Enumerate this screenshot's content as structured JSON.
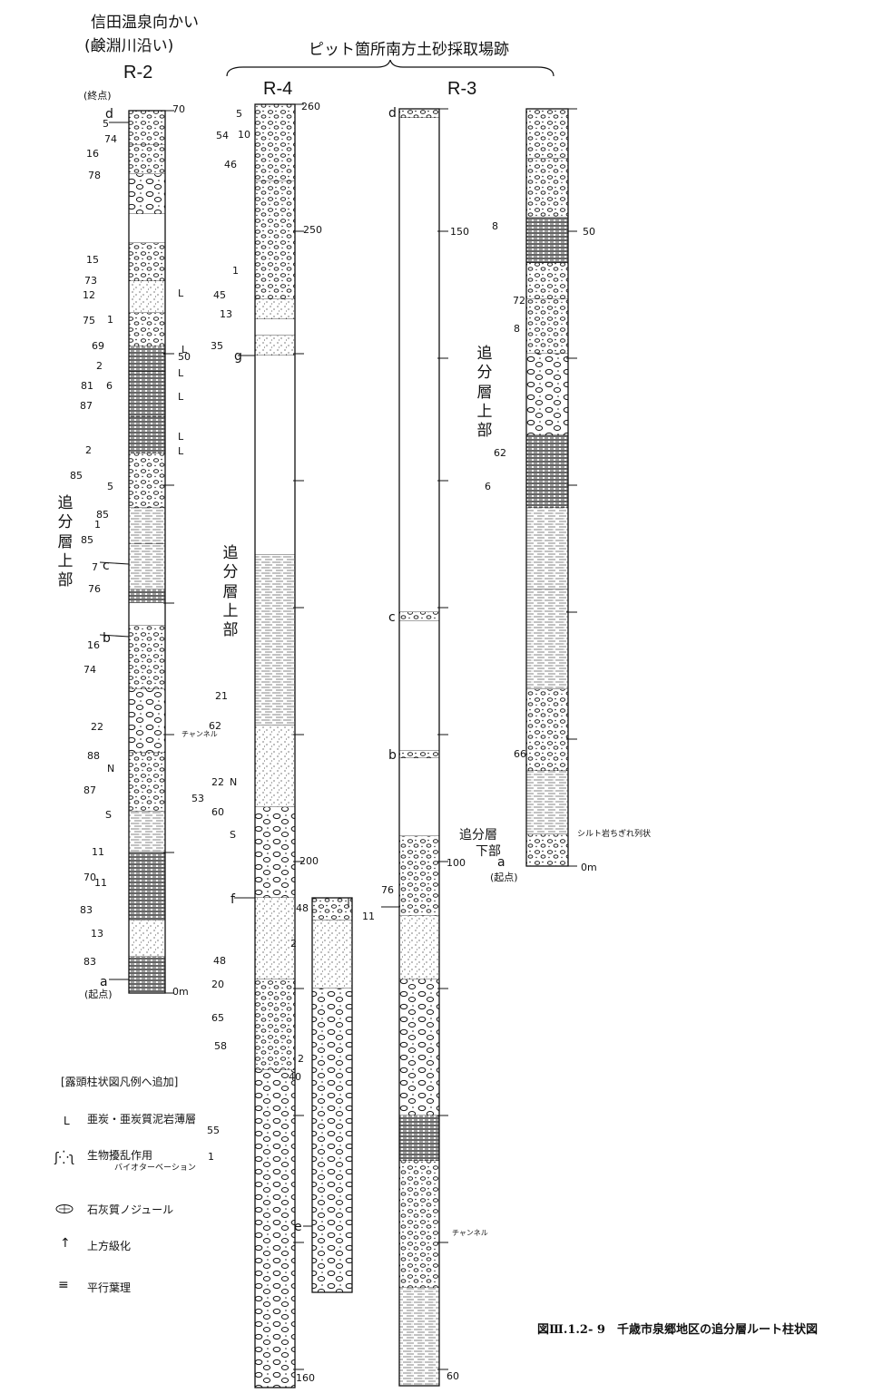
{
  "header": {
    "r2_site_line1": "信田温泉向かい",
    "r2_site_line2": "(鹸淵川沿い)",
    "pit_site": "ピット箇所南方土砂採取場跡"
  },
  "columns": {
    "r2": {
      "id": "R-2",
      "end_label": "(終点)",
      "start_label": "(起点)",
      "ticks": [
        "70",
        "50",
        "0m"
      ],
      "points": [
        "d",
        "c",
        "b",
        "a"
      ],
      "formation": "追分層上部",
      "annotations": [
        "チャンネル"
      ]
    },
    "r4": {
      "id": "R-4",
      "ticks": [
        "260",
        "250",
        "200",
        "160"
      ],
      "points": [
        "g",
        "f",
        "e"
      ],
      "formation": "追分層上部"
    },
    "r3": {
      "id": "R-3",
      "ticks": [
        "150",
        "100",
        "60",
        "50",
        "0m"
      ],
      "points": [
        "d",
        "c",
        "b",
        "a"
      ],
      "start_label": "(起点)",
      "formation_upper": "追分層上部",
      "formation_lower_line1": "追分層",
      "formation_lower_line2": "下部",
      "annotations": [
        "シルト岩ちぎれ列状",
        "チャンネル"
      ]
    }
  },
  "dips": [
    "5",
    "74",
    "16",
    "78",
    "15",
    "73",
    "12",
    "75",
    "1",
    "69",
    "2",
    "81",
    "6",
    "87",
    "2",
    "85",
    "5",
    "85",
    "1",
    "85",
    "7",
    "76",
    "16",
    "74",
    "22",
    "88",
    "87",
    "11",
    "70",
    "11",
    "83",
    "13",
    "83",
    "5",
    "54",
    "10",
    "46",
    "1",
    "45",
    "13",
    "35",
    "21",
    "62",
    "22",
    "53",
    "60",
    "48",
    "20",
    "65",
    "58",
    "40",
    "55",
    "1",
    "48",
    "2",
    "2",
    "76",
    "11",
    "8",
    "72",
    "8",
    "62",
    "6",
    "66"
  ],
  "compass": [
    "N",
    "S"
  ],
  "legend": {
    "title": "[露頭柱状図凡例へ追加]",
    "items": [
      {
        "symbol": "L",
        "label": "亜炭・亜炭質泥岩薄層",
        "sub": ""
      },
      {
        "symbol": "bioturbation-icon",
        "label": "生物擾乱作用",
        "sub": "バイオターベーション"
      },
      {
        "symbol": "nodule-icon",
        "label": "石灰質ノジュール",
        "sub": ""
      },
      {
        "symbol": "up-arrow-icon",
        "label": "上方級化",
        "sub": ""
      },
      {
        "symbol": "parallel-lines-icon",
        "label": "平行葉理",
        "sub": ""
      }
    ],
    "L_marker": "L"
  },
  "caption": "図Ⅲ.1.2- 9　千歳市泉郷地区の追分層ルート柱状図"
}
